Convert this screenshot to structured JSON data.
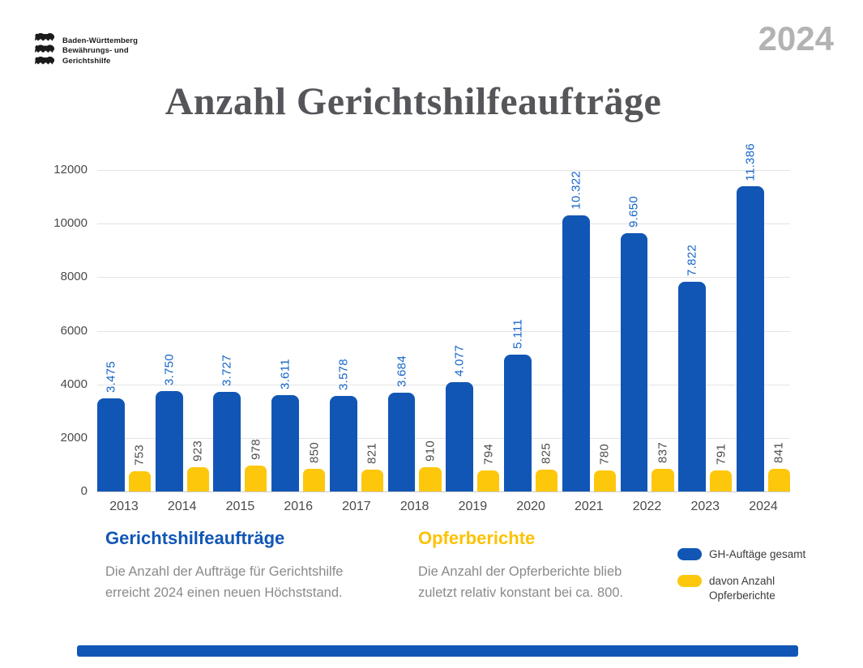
{
  "header": {
    "logo_lines": [
      "Baden-Württemberg",
      "Bewährungs- und",
      "Gerichtshilfe"
    ],
    "year_badge": "2024"
  },
  "title": "Anzahl Gerichtshilfeaufträge",
  "chart_data": {
    "type": "bar",
    "title": "Anzahl Gerichtshilfeaufträge",
    "categories": [
      "2013",
      "2014",
      "2015",
      "2016",
      "2017",
      "2018",
      "2019",
      "2020",
      "2021",
      "2022",
      "2023",
      "2024"
    ],
    "series": [
      {
        "name": "GH-Auftäge gesamt",
        "color": "#1156b5",
        "label_color": "#1565c8",
        "values": [
          3475,
          3750,
          3727,
          3611,
          3578,
          3684,
          4077,
          5111,
          10322,
          9650,
          7822,
          11386
        ],
        "labels": [
          "3.475",
          "3.750",
          "3.727",
          "3.611",
          "3.578",
          "3.684",
          "4.077",
          "5.111",
          "10.322",
          "9.650",
          "7.822",
          "11.386"
        ]
      },
      {
        "name": "davon Anzahl Opferberichte",
        "color": "#fdc70c",
        "label_color": "#4d4d4d",
        "values": [
          753,
          923,
          978,
          850,
          821,
          910,
          794,
          825,
          780,
          837,
          791,
          841
        ],
        "labels": [
          "753",
          "923",
          "978",
          "850",
          "821",
          "910",
          "794",
          "825",
          "780",
          "837",
          "791",
          "841"
        ]
      }
    ],
    "xlabel": "",
    "ylabel": "",
    "ylim": [
      0,
      12000
    ],
    "yticks": [
      "0",
      "2000",
      "4000",
      "6000",
      "8000",
      "10000",
      "12000"
    ],
    "grid": "horizontal",
    "legend_position": "bottom-right",
    "value_label_orientation": "vertical-bottom-to-top"
  },
  "footer": {
    "left": {
      "heading": "Gerichtshilfeaufträge",
      "body_lines": [
        "Die Anzahl der Aufträge für Gerichtshilfe",
        "erreicht 2024 einen neuen Höchststand."
      ]
    },
    "right": {
      "heading": "Opferberichte",
      "body_lines": [
        "Die Anzahl der Opferberichte blieb",
        "zuletzt relativ konstant bei ca. 800."
      ]
    },
    "legend": [
      {
        "color": "#1156b5",
        "lines": [
          "GH-Auftäge gesamt",
          ""
        ]
      },
      {
        "color": "#fdc70c",
        "lines": [
          "davon Anzahl",
          "Opferberichte"
        ]
      }
    ]
  },
  "colors": {
    "accent_blue": "#1156b5",
    "accent_yellow": "#fdc70c",
    "title_gray": "#55555a",
    "badge_gray": "#b3b3b3",
    "gridline": "#e4e4e4"
  }
}
